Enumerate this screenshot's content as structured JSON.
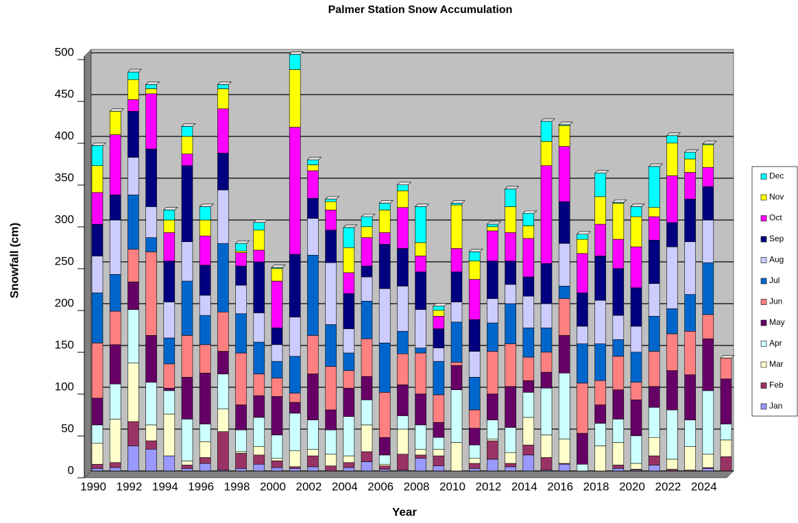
{
  "chart_data": {
    "type": "stacked_bar",
    "title": "Palmer Station Snow Accumulation",
    "xlabel": "Year",
    "ylabel": "Snowfall (cm)",
    "categories": [
      "1990",
      null,
      "1992",
      null,
      "1994",
      null,
      "1996",
      null,
      "1998",
      null,
      "2000",
      null,
      "2002",
      null,
      "2004",
      null,
      "2006",
      null,
      "2008",
      null,
      "2010",
      null,
      "2012",
      null,
      "2014",
      null,
      "2016",
      null,
      "2018",
      null,
      "2020",
      null,
      "2022",
      null,
      "2024",
      null
    ],
    "ylim": [
      0,
      500
    ],
    "yticks": [
      0,
      50,
      100,
      150,
      200,
      250,
      300,
      350,
      400,
      450,
      500
    ],
    "grid": true,
    "legend": "right",
    "series": [
      {
        "name": "Jan",
        "color": "#9999ff",
        "values": [
          3,
          4,
          30,
          26,
          18,
          3,
          9,
          1,
          3,
          8,
          4,
          3,
          5,
          0,
          4,
          11,
          2,
          1,
          15,
          6,
          0,
          3,
          14,
          5,
          19,
          1,
          8,
          0,
          0,
          3,
          1,
          7,
          0,
          0,
          3,
          0
        ]
      },
      {
        "name": "Feb",
        "color": "#993366",
        "values": [
          5,
          6,
          29,
          10,
          0,
          4,
          7,
          46,
          18,
          11,
          8,
          2,
          13,
          6,
          6,
          12,
          4,
          19,
          4,
          12,
          0,
          6,
          22,
          4,
          12,
          15,
          1,
          0,
          0,
          4,
          1,
          11,
          2,
          1,
          1,
          17
        ]
      },
      {
        "name": "Mar",
        "color": "#ffffcc",
        "values": [
          25,
          52,
          70,
          19,
          50,
          5,
          19,
          27,
          2,
          10,
          3,
          19,
          8,
          14,
          8,
          32,
          2,
          30,
          7,
          8,
          34,
          6,
          2,
          13,
          33,
          27,
          29,
          0,
          30,
          27,
          7,
          22,
          12,
          28,
          16,
          20
        ]
      },
      {
        "name": "Apr",
        "color": "#ccffff",
        "values": [
          22,
          42,
          64,
          51,
          28,
          50,
          21,
          42,
          26,
          35,
          28,
          45,
          35,
          29,
          47,
          30,
          11,
          16,
          29,
          14,
          63,
          16,
          23,
          30,
          30,
          56,
          79,
          8,
          27,
          28,
          33,
          36,
          59,
          32,
          76,
          19
        ]
      },
      {
        "name": "May",
        "color": "#660066",
        "values": [
          32,
          47,
          33,
          56,
          3,
          50,
          61,
          27,
          30,
          26,
          46,
          13,
          55,
          24,
          34,
          28,
          21,
          37,
          37,
          18,
          29,
          20,
          31,
          49,
          14,
          19,
          45,
          37,
          22,
          35,
          43,
          25,
          47,
          54,
          62,
          54
        ]
      },
      {
        "name": "Jun",
        "color": "#ff8080",
        "values": [
          66,
          40,
          39,
          100,
          29,
          50,
          34,
          47,
          62,
          26,
          22,
          11,
          46,
          52,
          21,
          45,
          54,
          37,
          49,
          33,
          4,
          22,
          51,
          51,
          28,
          24,
          44,
          60,
          29,
          40,
          21,
          42,
          44,
          52,
          29,
          25
        ]
      },
      {
        "name": "Jul",
        "color": "#0066cc",
        "values": [
          60,
          44,
          65,
          17,
          31,
          65,
          35,
          82,
          47,
          38,
          20,
          44,
          96,
          50,
          21,
          45,
          59,
          27,
          6,
          40,
          48,
          39,
          34,
          48,
          35,
          29,
          15,
          47,
          44,
          20,
          36,
          42,
          30,
          44,
          62,
          null
        ]
      },
      {
        "name": "Aug",
        "color": "#ccccff",
        "values": [
          44,
          65,
          45,
          37,
          43,
          47,
          24,
          64,
          34,
          35,
          20,
          47,
          44,
          74,
          29,
          29,
          65,
          54,
          46,
          16,
          24,
          31,
          29,
          23,
          38,
          29,
          51,
          21,
          52,
          29,
          31,
          39,
          74,
          63,
          51,
          null
        ]
      },
      {
        "name": "Sep",
        "color": "#000080",
        "values": [
          38,
          30,
          55,
          69,
          49,
          91,
          36,
          44,
          23,
          61,
          20,
          75,
          24,
          39,
          42,
          13,
          53,
          45,
          45,
          23,
          36,
          38,
          45,
          28,
          23,
          48,
          50,
          40,
          53,
          56,
          46,
          52,
          29,
          51,
          40,
          null
        ]
      },
      {
        "name": "Oct",
        "color": "#ff00ff",
        "values": [
          38,
          72,
          14,
          66,
          34,
          14,
          35,
          53,
          16,
          14,
          56,
          152,
          33,
          24,
          25,
          34,
          14,
          49,
          19,
          15,
          28,
          48,
          36,
          34,
          46,
          117,
          66,
          47,
          38,
          35,
          49,
          28,
          56,
          32,
          23,
          null
        ]
      },
      {
        "name": "Nov",
        "color": "#ffff00",
        "values": [
          32,
          28,
          24,
          6,
          15,
          21,
          19,
          24,
          2,
          24,
          15,
          69,
          7,
          10,
          30,
          13,
          27,
          20,
          16,
          7,
          52,
          22,
          5,
          31,
          15,
          29,
          25,
          17,
          33,
          43,
          36,
          11,
          39,
          16,
          27,
          null
        ]
      },
      {
        "name": "Dec",
        "color": "#00ffff",
        "values": [
          24,
          0,
          9,
          5,
          12,
          12,
          16,
          5,
          9,
          9,
          1,
          18,
          6,
          3,
          24,
          12,
          8,
          7,
          43,
          5,
          2,
          11,
          3,
          21,
          15,
          24,
          1,
          6,
          28,
          1,
          12,
          49,
          9,
          8,
          1,
          null
        ]
      }
    ]
  }
}
